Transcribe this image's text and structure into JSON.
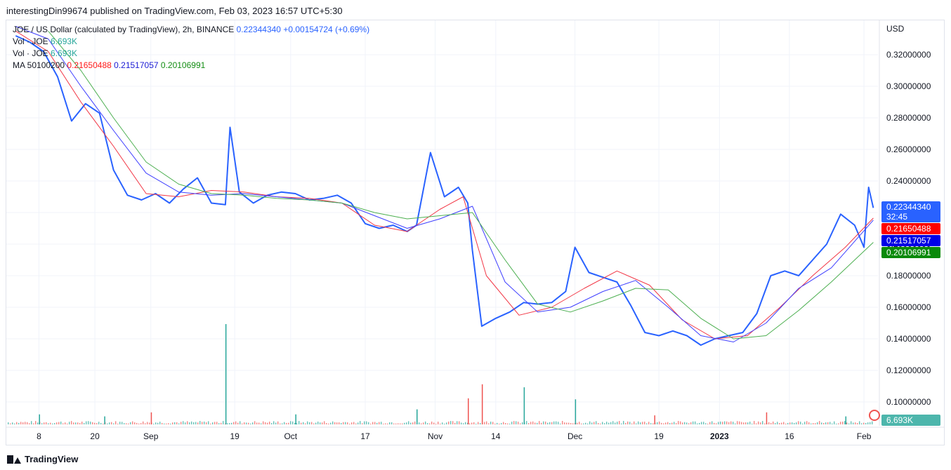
{
  "header": {
    "published_line": "interestingDin99674 published on TradingView.com, Feb 03, 2023 16:57 UTC+5:30"
  },
  "legend": {
    "symbol_line": "JOE / US Dollar (calculated by TradingView), 2h, BINANCE",
    "price": "0.22344340",
    "change": "+0.00154724 (+0.69%)",
    "vol_label": "Vol · JOE",
    "vol_value": "6.693K",
    "ma_label": "MA 50100200",
    "ma50": "0.21650488",
    "ma100": "0.21517057",
    "ma200": "0.20106991"
  },
  "footer": {
    "brand": "TradingView"
  },
  "colors": {
    "price_line": "#2962ff",
    "ma50": "#f23645",
    "ma100": "#3f3fff",
    "ma200": "#4caf50",
    "vol_up": "#26a69a",
    "vol_down": "#ef5350"
  },
  "chart_data": {
    "type": "line",
    "currency": "USD",
    "x_ticks": [
      "8",
      "20",
      "Sep",
      "19",
      "Oct",
      "17",
      "Nov",
      "14",
      "Dec",
      "19",
      "2023",
      "16",
      "Feb"
    ],
    "y_ticks": [
      "0.10000000",
      "0.12000000",
      "0.14000000",
      "0.16000000",
      "0.18000000",
      "0.20000000",
      "0.22000000",
      "0.24000000",
      "0.26000000",
      "0.28000000",
      "0.30000000",
      "0.32000000"
    ],
    "ylim": [
      0.09,
      0.33
    ],
    "grid": true,
    "price_labels": {
      "last": "0.22344340",
      "countdown": "32:45",
      "ma50": "0.21650488",
      "ma100": "0.21517057",
      "ma200": "0.20106991",
      "volume": "6.693K"
    },
    "series": [
      {
        "name": "JOE / US Dollar",
        "x": [
          "Aug 03",
          "Aug 06",
          "Aug 09",
          "Aug 12",
          "Aug 15",
          "Aug 18",
          "Aug 21",
          "Aug 24",
          "Aug 27",
          "Aug 30",
          "Sep 02",
          "Sep 05",
          "Sep 08",
          "Sep 11",
          "Sep 14",
          "Sep 17",
          "Sep 18",
          "Sep 20",
          "Sep 23",
          "Sep 26",
          "Sep 29",
          "Oct 02",
          "Oct 05",
          "Oct 08",
          "Oct 11",
          "Oct 14",
          "Oct 17",
          "Oct 20",
          "Oct 23",
          "Oct 26",
          "Oct 28",
          "Oct 31",
          "Nov 03",
          "Nov 06",
          "Nov 08",
          "Nov 09",
          "Nov 11",
          "Nov 14",
          "Nov 17",
          "Nov 20",
          "Nov 23",
          "Nov 26",
          "Nov 29",
          "Dec 01",
          "Dec 04",
          "Dec 07",
          "Dec 10",
          "Dec 13",
          "Dec 16",
          "Dec 19",
          "Dec 22",
          "Dec 25",
          "Dec 28",
          "Dec 31",
          "Jan 03",
          "Jan 06",
          "Jan 09",
          "Jan 12",
          "Jan 15",
          "Jan 18",
          "Jan 21",
          "Jan 24",
          "Jan 27",
          "Jan 30",
          "Feb 01",
          "Feb 02",
          "Feb 03"
        ],
        "values": [
          0.332,
          0.328,
          0.322,
          0.306,
          0.278,
          0.289,
          0.283,
          0.247,
          0.231,
          0.228,
          0.232,
          0.226,
          0.235,
          0.242,
          0.226,
          0.225,
          0.274,
          0.233,
          0.226,
          0.231,
          0.233,
          0.232,
          0.228,
          0.229,
          0.231,
          0.226,
          0.213,
          0.21,
          0.212,
          0.208,
          0.212,
          0.258,
          0.23,
          0.236,
          0.226,
          0.196,
          0.148,
          0.153,
          0.157,
          0.163,
          0.162,
          0.163,
          0.17,
          0.198,
          0.182,
          0.179,
          0.176,
          0.161,
          0.144,
          0.142,
          0.145,
          0.142,
          0.136,
          0.14,
          0.142,
          0.144,
          0.156,
          0.18,
          0.183,
          0.18,
          0.19,
          0.2,
          0.219,
          0.212,
          0.198,
          0.236,
          0.223
        ]
      },
      {
        "name": "MA 50",
        "x": [
          "Aug 03",
          "Aug 10",
          "Aug 17",
          "Aug 24",
          "Aug 31",
          "Sep 07",
          "Sep 14",
          "Sep 21",
          "Sep 28",
          "Oct 05",
          "Oct 12",
          "Oct 19",
          "Oct 26",
          "Nov 02",
          "Nov 07",
          "Nov 12",
          "Nov 19",
          "Nov 26",
          "Dec 03",
          "Dec 10",
          "Dec 17",
          "Dec 24",
          "Dec 31",
          "Jan 07",
          "Jan 14",
          "Jan 21",
          "Jan 28",
          "Feb 03"
        ],
        "values": [
          0.335,
          0.322,
          0.29,
          0.262,
          0.232,
          0.23,
          0.234,
          0.233,
          0.23,
          0.229,
          0.226,
          0.212,
          0.208,
          0.222,
          0.23,
          0.18,
          0.155,
          0.16,
          0.172,
          0.183,
          0.174,
          0.152,
          0.14,
          0.142,
          0.16,
          0.18,
          0.198,
          0.2165
        ]
      },
      {
        "name": "MA 100",
        "x": [
          "Aug 03",
          "Aug 10",
          "Aug 17",
          "Aug 24",
          "Aug 31",
          "Sep 07",
          "Sep 14",
          "Sep 21",
          "Sep 28",
          "Oct 05",
          "Oct 12",
          "Oct 19",
          "Oct 26",
          "Nov 02",
          "Nov 09",
          "Nov 16",
          "Nov 23",
          "Nov 30",
          "Dec 07",
          "Dec 14",
          "Dec 21",
          "Dec 28",
          "Jan 04",
          "Jan 11",
          "Jan 18",
          "Jan 25",
          "Feb 03"
        ],
        "values": [
          0.338,
          0.33,
          0.3,
          0.272,
          0.245,
          0.233,
          0.231,
          0.232,
          0.23,
          0.228,
          0.226,
          0.218,
          0.21,
          0.216,
          0.224,
          0.176,
          0.157,
          0.16,
          0.17,
          0.177,
          0.16,
          0.142,
          0.138,
          0.15,
          0.172,
          0.185,
          0.2152
        ]
      },
      {
        "name": "MA 200",
        "x": [
          "Aug 10",
          "Aug 17",
          "Aug 24",
          "Aug 31",
          "Sep 07",
          "Sep 14",
          "Sep 21",
          "Sep 28",
          "Oct 05",
          "Oct 12",
          "Oct 19",
          "Oct 26",
          "Nov 02",
          "Nov 09",
          "Nov 16",
          "Nov 23",
          "Nov 30",
          "Dec 07",
          "Dec 14",
          "Dec 21",
          "Dec 28",
          "Jan 04",
          "Jan 11",
          "Jan 18",
          "Jan 25",
          "Feb 03"
        ],
        "values": [
          0.335,
          0.31,
          0.28,
          0.252,
          0.238,
          0.232,
          0.231,
          0.229,
          0.228,
          0.226,
          0.22,
          0.216,
          0.218,
          0.22,
          0.19,
          0.162,
          0.157,
          0.164,
          0.172,
          0.171,
          0.153,
          0.14,
          0.142,
          0.158,
          0.176,
          0.2011
        ]
      }
    ],
    "volume": {
      "name": "Vol · JOE",
      "max_shown": 1.0,
      "spikes": [
        {
          "x": "Aug 08",
          "v": 0.1
        },
        {
          "x": "Aug 22",
          "v": 0.08
        },
        {
          "x": "Sep 01",
          "v": 0.12
        },
        {
          "x": "Sep 17",
          "v": 1.0
        },
        {
          "x": "Oct 02",
          "v": 0.1
        },
        {
          "x": "Oct 28",
          "v": 0.15
        },
        {
          "x": "Nov 08",
          "v": 0.26
        },
        {
          "x": "Nov 11",
          "v": 0.4
        },
        {
          "x": "Nov 20",
          "v": 0.37
        },
        {
          "x": "Dec 01",
          "v": 0.25
        },
        {
          "x": "Dec 18",
          "v": 0.09
        },
        {
          "x": "Jan 11",
          "v": 0.12
        },
        {
          "x": "Jan 28",
          "v": 0.08
        }
      ]
    }
  }
}
